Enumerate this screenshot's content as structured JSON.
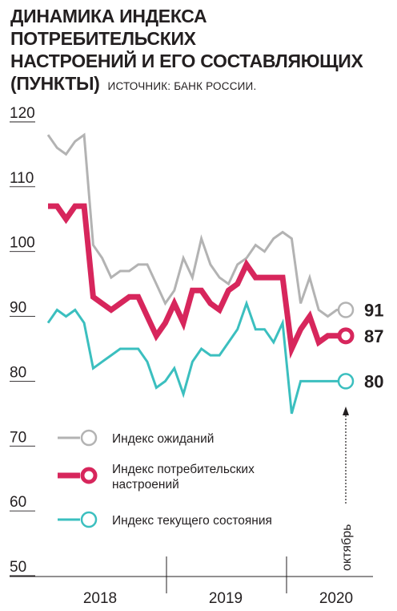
{
  "title": {
    "line1": "ДИНАМИКА ИНДЕКСА ПОТРЕБИТЕЛЬСКИХ",
    "line2": "НАСТРОЕНИЙ И ЕГО СОСТАВЛЯЮЩИХ",
    "line3": "(ПУНКТЫ)",
    "source": "ИСТОЧНИК: БАНК РОССИИ."
  },
  "chart_data": {
    "type": "line",
    "title": "ДИНАМИКА ИНДЕКСА ПОТРЕБИТЕЛЬСКИХ НАСТРОЕНИЙ И ЕГО СОСТАВЛЯЮЩИХ (ПУНКТЫ)",
    "ylim": [
      50,
      120
    ],
    "yticks": [
      120,
      110,
      100,
      90,
      80,
      70,
      60,
      50
    ],
    "x_groups": [
      "2018",
      "2019",
      "2020"
    ],
    "x": [
      "2018-01",
      "2018-02",
      "2018-03",
      "2018-04",
      "2018-05",
      "2018-06",
      "2018-07",
      "2018-08",
      "2018-09",
      "2018-10",
      "2018-11",
      "2018-12",
      "2019-01",
      "2019-02",
      "2019-03",
      "2019-04",
      "2019-05",
      "2019-06",
      "2019-07",
      "2019-08",
      "2019-09",
      "2019-10",
      "2019-11",
      "2019-12",
      "2020-01",
      "2020-02",
      "2020-03",
      "2020-04",
      "2020-05",
      "2020-06",
      "2020-07",
      "2020-08",
      "2020-09",
      "2020-10"
    ],
    "series": [
      {
        "name": "Индекс ожиданий",
        "color": "#b3b3b3",
        "end_label": "91",
        "values": [
          118,
          116,
          115,
          117,
          118,
          101,
          99,
          96,
          97,
          97,
          98,
          98,
          95,
          92,
          94,
          99,
          96,
          102,
          98,
          96,
          95,
          98,
          99,
          101,
          100,
          102,
          103,
          102,
          92,
          96,
          91,
          90,
          91,
          91
        ]
      },
      {
        "name": "Индекс потребительских настроений",
        "color": "#d7265c",
        "end_label": "87",
        "values": [
          107,
          107,
          105,
          107,
          107,
          93,
          92,
          91,
          92,
          93,
          93,
          90,
          87,
          89,
          92,
          89,
          94,
          94,
          92,
          91,
          94,
          95,
          98,
          96,
          96,
          96,
          96,
          85,
          88,
          90,
          86,
          87,
          87,
          87
        ]
      },
      {
        "name": "Индекс текущего состояния",
        "color": "#3bbfbf",
        "end_label": "80",
        "values": [
          89,
          91,
          90,
          91,
          89,
          82,
          83,
          84,
          85,
          85,
          85,
          83,
          79,
          80,
          82,
          78,
          83,
          85,
          84,
          84,
          86,
          88,
          92,
          88,
          88,
          86,
          89,
          75,
          80,
          80,
          80,
          80,
          80,
          80
        ]
      }
    ],
    "legend": "bottom-left",
    "annotation": "октябрь",
    "grid": false
  }
}
